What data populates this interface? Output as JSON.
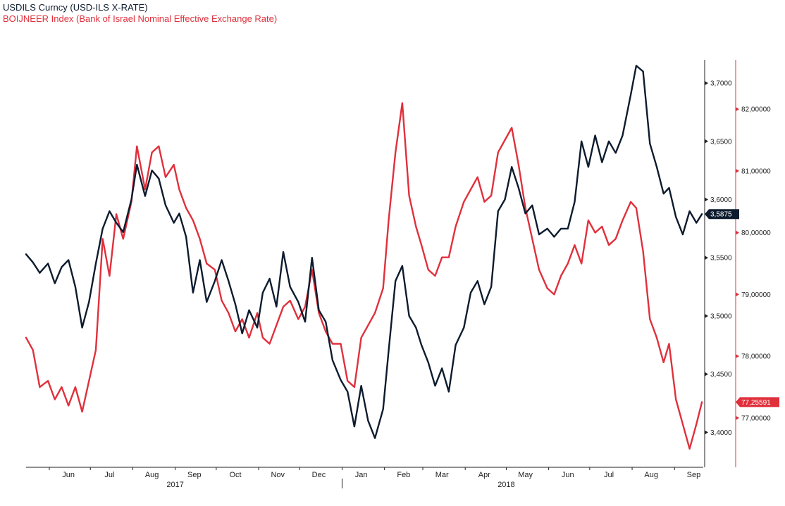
{
  "colors": {
    "usd": "#0d1b2e",
    "boi": "#e0303c",
    "axis": "#222222",
    "background": "#ffffff"
  },
  "chart_data": {
    "type": "line",
    "title": "USDILS Curncy (USD-ILS X-RATE)",
    "subtitle": "BOIJNEER Index (Bank of Israel Nominal Effective Exchange Rate)",
    "grid": false,
    "x_months": [
      "Jun",
      "Jul",
      "Aug",
      "Sep",
      "Oct",
      "Nov",
      "Dec",
      "Jan",
      "Feb",
      "Mar",
      "Apr",
      "May",
      "Jun",
      "Jul",
      "Aug",
      "Sep"
    ],
    "x_years": [
      "2017",
      "2018"
    ],
    "x_range": [
      "2017-05-15",
      "2018-09-22"
    ],
    "y_left": {
      "range": [
        3.37,
        3.72
      ],
      "ticks": [
        "3,4000",
        "3,4500",
        "3,5000",
        "3,5500",
        "3,6000",
        "3,6500",
        "3,7000"
      ]
    },
    "y_right": {
      "range": [
        76.2,
        82.8
      ],
      "ticks": [
        "77,00000",
        "78,00000",
        "79,00000",
        "80,00000",
        "81,00000",
        "82,00000"
      ]
    },
    "series": [
      {
        "name": "USDILS Curncy (USD-ILS X-RATE)",
        "axis": "left",
        "last_label": "3,5875",
        "points": [
          [
            "2017-05-15",
            3.553
          ],
          [
            "2017-05-20",
            3.546
          ],
          [
            "2017-05-25",
            3.537
          ],
          [
            "2017-05-31",
            3.545
          ],
          [
            "2017-06-05",
            3.528
          ],
          [
            "2017-06-10",
            3.542
          ],
          [
            "2017-06-15",
            3.548
          ],
          [
            "2017-06-20",
            3.525
          ],
          [
            "2017-06-25",
            3.49
          ],
          [
            "2017-06-30",
            3.512
          ],
          [
            "2017-07-05",
            3.545
          ],
          [
            "2017-07-10",
            3.575
          ],
          [
            "2017-07-15",
            3.59
          ],
          [
            "2017-07-20",
            3.58
          ],
          [
            "2017-07-25",
            3.572
          ],
          [
            "2017-07-31",
            3.6
          ],
          [
            "2017-08-04",
            3.63
          ],
          [
            "2017-08-10",
            3.603
          ],
          [
            "2017-08-15",
            3.625
          ],
          [
            "2017-08-20",
            3.618
          ],
          [
            "2017-08-25",
            3.595
          ],
          [
            "2017-08-31",
            3.58
          ],
          [
            "2017-09-04",
            3.588
          ],
          [
            "2017-09-09",
            3.568
          ],
          [
            "2017-09-14",
            3.52
          ],
          [
            "2017-09-19",
            3.548
          ],
          [
            "2017-09-24",
            3.512
          ],
          [
            "2017-09-30",
            3.53
          ],
          [
            "2017-10-05",
            3.548
          ],
          [
            "2017-10-10",
            3.53
          ],
          [
            "2017-10-15",
            3.51
          ],
          [
            "2017-10-20",
            3.485
          ],
          [
            "2017-10-25",
            3.505
          ],
          [
            "2017-10-31",
            3.49
          ],
          [
            "2017-11-04",
            3.52
          ],
          [
            "2017-11-09",
            3.532
          ],
          [
            "2017-11-14",
            3.508
          ],
          [
            "2017-11-19",
            3.555
          ],
          [
            "2017-11-24",
            3.525
          ],
          [
            "2017-11-30",
            3.512
          ],
          [
            "2017-12-05",
            3.495
          ],
          [
            "2017-12-10",
            3.55
          ],
          [
            "2017-12-15",
            3.505
          ],
          [
            "2017-12-20",
            3.495
          ],
          [
            "2017-12-25",
            3.462
          ],
          [
            "2017-12-31",
            3.445
          ],
          [
            "2018-01-05",
            3.435
          ],
          [
            "2018-01-10",
            3.405
          ],
          [
            "2018-01-15",
            3.44
          ],
          [
            "2018-01-20",
            3.41
          ],
          [
            "2018-01-25",
            3.395
          ],
          [
            "2018-01-31",
            3.42
          ],
          [
            "2018-02-04",
            3.47
          ],
          [
            "2018-02-09",
            3.53
          ],
          [
            "2018-02-14",
            3.543
          ],
          [
            "2018-02-19",
            3.5
          ],
          [
            "2018-02-24",
            3.49
          ],
          [
            "2018-02-28",
            3.475
          ],
          [
            "2018-03-05",
            3.46
          ],
          [
            "2018-03-10",
            3.44
          ],
          [
            "2018-03-15",
            3.455
          ],
          [
            "2018-03-20",
            3.435
          ],
          [
            "2018-03-25",
            3.475
          ],
          [
            "2018-03-31",
            3.49
          ],
          [
            "2018-04-05",
            3.52
          ],
          [
            "2018-04-10",
            3.53
          ],
          [
            "2018-04-15",
            3.51
          ],
          [
            "2018-04-20",
            3.525
          ],
          [
            "2018-04-25",
            3.59
          ],
          [
            "2018-04-30",
            3.6
          ],
          [
            "2018-05-05",
            3.628
          ],
          [
            "2018-05-10",
            3.61
          ],
          [
            "2018-05-15",
            3.588
          ],
          [
            "2018-05-20",
            3.595
          ],
          [
            "2018-05-25",
            3.57
          ],
          [
            "2018-05-31",
            3.575
          ],
          [
            "2018-06-05",
            3.568
          ],
          [
            "2018-06-10",
            3.575
          ],
          [
            "2018-06-15",
            3.575
          ],
          [
            "2018-06-20",
            3.598
          ],
          [
            "2018-06-25",
            3.65
          ],
          [
            "2018-06-30",
            3.628
          ],
          [
            "2018-07-05",
            3.655
          ],
          [
            "2018-07-10",
            3.632
          ],
          [
            "2018-07-15",
            3.65
          ],
          [
            "2018-07-20",
            3.64
          ],
          [
            "2018-07-25",
            3.655
          ],
          [
            "2018-07-31",
            3.69
          ],
          [
            "2018-08-04",
            3.715
          ],
          [
            "2018-08-09",
            3.71
          ],
          [
            "2018-08-14",
            3.648
          ],
          [
            "2018-08-19",
            3.628
          ],
          [
            "2018-08-24",
            3.605
          ],
          [
            "2018-08-28",
            3.61
          ],
          [
            "2018-09-02",
            3.585
          ],
          [
            "2018-09-07",
            3.57
          ],
          [
            "2018-09-12",
            3.59
          ],
          [
            "2018-09-17",
            3.58
          ],
          [
            "2018-09-21",
            3.5875
          ]
        ]
      },
      {
        "name": "BOIJNEER Index (Bank of Israel Nominal Effective Exchange Rate)",
        "axis": "right",
        "last_label": "77,25591",
        "points": [
          [
            "2017-05-15",
            78.3
          ],
          [
            "2017-05-20",
            78.1
          ],
          [
            "2017-05-25",
            77.5
          ],
          [
            "2017-05-31",
            77.6
          ],
          [
            "2017-06-05",
            77.3
          ],
          [
            "2017-06-10",
            77.5
          ],
          [
            "2017-06-15",
            77.2
          ],
          [
            "2017-06-20",
            77.5
          ],
          [
            "2017-06-25",
            77.1
          ],
          [
            "2017-06-30",
            77.6
          ],
          [
            "2017-07-05",
            78.1
          ],
          [
            "2017-07-10",
            79.9
          ],
          [
            "2017-07-15",
            79.3
          ],
          [
            "2017-07-20",
            80.3
          ],
          [
            "2017-07-25",
            79.9
          ],
          [
            "2017-07-31",
            80.5
          ],
          [
            "2017-08-04",
            81.4
          ],
          [
            "2017-08-10",
            80.7
          ],
          [
            "2017-08-15",
            81.3
          ],
          [
            "2017-08-20",
            81.4
          ],
          [
            "2017-08-25",
            80.9
          ],
          [
            "2017-08-31",
            81.1
          ],
          [
            "2017-09-04",
            80.7
          ],
          [
            "2017-09-09",
            80.4
          ],
          [
            "2017-09-14",
            80.2
          ],
          [
            "2017-09-19",
            79.9
          ],
          [
            "2017-09-24",
            79.5
          ],
          [
            "2017-09-30",
            79.4
          ],
          [
            "2017-10-05",
            78.9
          ],
          [
            "2017-10-10",
            78.7
          ],
          [
            "2017-10-15",
            78.4
          ],
          [
            "2017-10-20",
            78.6
          ],
          [
            "2017-10-25",
            78.3
          ],
          [
            "2017-10-31",
            78.7
          ],
          [
            "2017-11-04",
            78.3
          ],
          [
            "2017-11-09",
            78.2
          ],
          [
            "2017-11-14",
            78.5
          ],
          [
            "2017-11-19",
            78.8
          ],
          [
            "2017-11-24",
            78.9
          ],
          [
            "2017-11-30",
            78.6
          ],
          [
            "2017-12-05",
            78.8
          ],
          [
            "2017-12-10",
            79.4
          ],
          [
            "2017-12-15",
            78.7
          ],
          [
            "2017-12-20",
            78.4
          ],
          [
            "2017-12-25",
            78.2
          ],
          [
            "2017-12-31",
            78.2
          ],
          [
            "2018-01-05",
            77.6
          ],
          [
            "2018-01-10",
            77.5
          ],
          [
            "2018-01-15",
            78.3
          ],
          [
            "2018-01-20",
            78.5
          ],
          [
            "2018-01-25",
            78.7
          ],
          [
            "2018-01-31",
            79.1
          ],
          [
            "2018-02-04",
            80.2
          ],
          [
            "2018-02-09",
            81.3
          ],
          [
            "2018-02-14",
            82.1
          ],
          [
            "2018-02-19",
            80.6
          ],
          [
            "2018-02-24",
            80.1
          ],
          [
            "2018-02-28",
            79.8
          ],
          [
            "2018-03-05",
            79.4
          ],
          [
            "2018-03-10",
            79.3
          ],
          [
            "2018-03-15",
            79.6
          ],
          [
            "2018-03-20",
            79.6
          ],
          [
            "2018-03-25",
            80.1
          ],
          [
            "2018-03-31",
            80.5
          ],
          [
            "2018-04-05",
            80.7
          ],
          [
            "2018-04-10",
            80.9
          ],
          [
            "2018-04-15",
            80.5
          ],
          [
            "2018-04-20",
            80.6
          ],
          [
            "2018-04-25",
            81.3
          ],
          [
            "2018-04-30",
            81.5
          ],
          [
            "2018-05-05",
            81.7
          ],
          [
            "2018-05-10",
            81.1
          ],
          [
            "2018-05-15",
            80.4
          ],
          [
            "2018-05-20",
            79.9
          ],
          [
            "2018-05-25",
            79.4
          ],
          [
            "2018-05-31",
            79.1
          ],
          [
            "2018-06-05",
            79.0
          ],
          [
            "2018-06-10",
            79.3
          ],
          [
            "2018-06-15",
            79.5
          ],
          [
            "2018-06-20",
            79.8
          ],
          [
            "2018-06-25",
            79.5
          ],
          [
            "2018-06-30",
            80.2
          ],
          [
            "2018-07-05",
            80.0
          ],
          [
            "2018-07-10",
            80.1
          ],
          [
            "2018-07-15",
            79.8
          ],
          [
            "2018-07-20",
            79.9
          ],
          [
            "2018-07-25",
            80.2
          ],
          [
            "2018-07-31",
            80.5
          ],
          [
            "2018-08-04",
            80.4
          ],
          [
            "2018-08-09",
            79.7
          ],
          [
            "2018-08-14",
            78.6
          ],
          [
            "2018-08-19",
            78.3
          ],
          [
            "2018-08-24",
            77.9
          ],
          [
            "2018-08-28",
            78.2
          ],
          [
            "2018-09-02",
            77.3
          ],
          [
            "2018-09-07",
            76.9
          ],
          [
            "2018-09-12",
            76.5
          ],
          [
            "2018-09-17",
            76.9
          ],
          [
            "2018-09-21",
            77.25591
          ]
        ]
      }
    ]
  }
}
